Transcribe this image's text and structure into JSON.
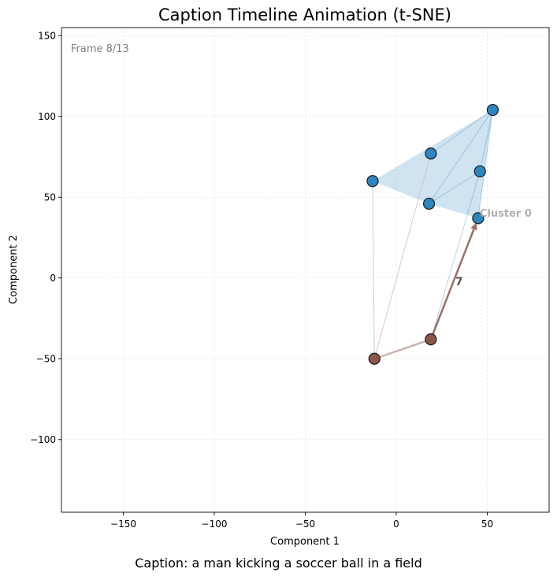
{
  "chart_data": {
    "type": "scatter",
    "title": "Caption Timeline Animation (t-SNE)",
    "xlabel": "Component 1",
    "ylabel": "Component 2",
    "xlim": [
      -184,
      84
    ],
    "ylim": [
      -145,
      155
    ],
    "xticks": [
      -150,
      -100,
      -50,
      0,
      50
    ],
    "yticks": [
      -100,
      -50,
      0,
      50,
      100,
      150
    ],
    "grid": true,
    "frame_label": "Frame 8/13",
    "cluster_label": "Cluster 0",
    "step_label": "7",
    "clusters": [
      {
        "name": "Cluster 0",
        "color": "#2e86c1",
        "points": [
          [
            53,
            104
          ],
          [
            19,
            77
          ],
          [
            -13,
            60
          ],
          [
            46,
            66
          ],
          [
            18,
            46
          ],
          [
            45,
            37
          ]
        ]
      }
    ],
    "timeline": {
      "color": "#8c564b",
      "points": [
        [
          -12,
          -50
        ],
        [
          19,
          -38
        ]
      ],
      "arrow_end": [
        45,
        37
      ]
    }
  },
  "footer": {
    "caption": "Caption: a man kicking a soccer ball in a field"
  },
  "colors": {
    "cluster_fill": "#a9cce3",
    "cluster_point": "#2e86c1",
    "timeline_point": "#8c564b",
    "faded_line": "#d4b9b4"
  }
}
